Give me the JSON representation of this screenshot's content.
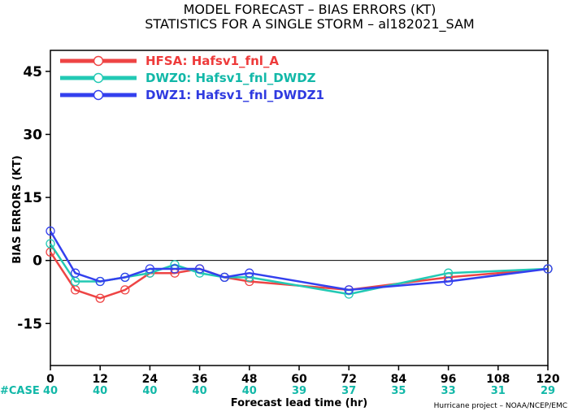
{
  "chart_data": {
    "type": "line",
    "title": "MODEL FORECAST – BIAS ERRORS (KT)",
    "subtitle": "STATISTICS FOR A SINGLE STORM – al182021_SAM",
    "xlabel": "Forecast lead time (hr)",
    "ylabel": "BIAS ERRORS (KT)",
    "xlim": [
      0,
      120
    ],
    "ylim": [
      -25,
      50
    ],
    "x_ticks": [
      0,
      12,
      24,
      36,
      48,
      60,
      72,
      84,
      96,
      108,
      120
    ],
    "y_ticks": [
      45,
      30,
      15,
      0,
      -15
    ],
    "y_tick_labels": [
      "45",
      "30",
      "15",
      "0",
      "-15"
    ],
    "zero_line": true,
    "legend_position": "top-left",
    "series": [
      {
        "name": "HFSA: Hafsv1_fnl_A",
        "color": "#ee4444",
        "label_color": "#ee3b3b",
        "points": [
          [
            0,
            2
          ],
          [
            6,
            -7
          ],
          [
            12,
            -9
          ],
          [
            18,
            -7
          ],
          [
            24,
            -3
          ],
          [
            30,
            -3
          ],
          [
            36,
            -2
          ],
          [
            42,
            -4
          ],
          [
            48,
            -5
          ],
          [
            72,
            -7
          ],
          [
            96,
            -4
          ],
          [
            120,
            -2
          ]
        ]
      },
      {
        "name": "DWZ0: Hafsv1_fnl_DWDZ",
        "color": "#22c9b4",
        "label_color": "#12b8a8",
        "points": [
          [
            0,
            4
          ],
          [
            6,
            -5
          ],
          [
            12,
            -5
          ],
          [
            18,
            -4
          ],
          [
            24,
            -3
          ],
          [
            30,
            -1
          ],
          [
            36,
            -3
          ],
          [
            42,
            -4
          ],
          [
            48,
            -4
          ],
          [
            72,
            -8
          ],
          [
            96,
            -3
          ],
          [
            120,
            -2
          ]
        ]
      },
      {
        "name": "DWZ1: Hafsv1_fnl_DWDZ1",
        "color": "#3340ee",
        "label_color": "#2f3ae0",
        "points": [
          [
            0,
            7
          ],
          [
            6,
            -3
          ],
          [
            12,
            -5
          ],
          [
            18,
            -4
          ],
          [
            24,
            -2
          ],
          [
            30,
            -2
          ],
          [
            36,
            -2
          ],
          [
            42,
            -4
          ],
          [
            48,
            -3
          ],
          [
            72,
            -7
          ],
          [
            96,
            -5
          ],
          [
            120,
            -2
          ]
        ]
      }
    ],
    "case_label": "#CASE",
    "case_x": [
      0,
      12,
      24,
      36,
      48,
      60,
      72,
      84,
      96,
      108,
      120
    ],
    "case_counts": [
      "40",
      "40",
      "40",
      "40",
      "40",
      "39",
      "37",
      "35",
      "33",
      "31",
      "29"
    ],
    "case_color": "#12b8a8",
    "credit": "Hurricane project – NOAA/NCEP/EMC"
  }
}
